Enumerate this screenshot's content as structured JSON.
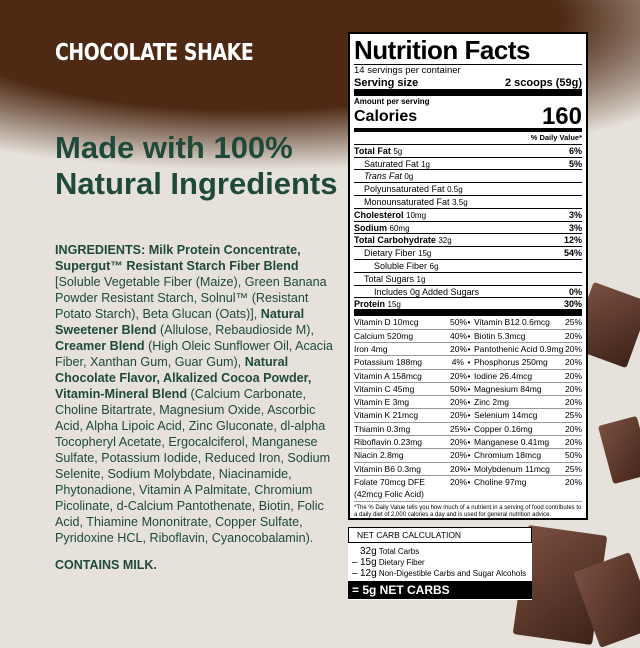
{
  "brand_color": "#4e2a14",
  "text_color": "#1f4a3a",
  "title": "CHOCOLATE SHAKE",
  "headline": "Made with 100% Natural Ingredients",
  "ingredients": [
    {
      "b": "INGREDIENTS: Milk Protein Concentrate, Supergut™ Resistant Starch Fiber Blend "
    },
    {
      "t": "[Soluble Vegetable Fiber (Maize), Green Banana Powder Resistant Starch, Solnul™ (Resistant Potato Starch), Beta Glucan (Oats)], "
    },
    {
      "b": "Natural Sweetener Blend "
    },
    {
      "t": "(Allulose, Rebaudioside M), "
    },
    {
      "b": "Creamer Blend "
    },
    {
      "t": "(High Oleic Sunflower Oil, Acacia Fiber, Xanthan Gum, Guar Gum), "
    },
    {
      "b": "Natural Chocolate Flavor, Alkalized Cocoa Powder, Vitamin-Mineral Blend "
    },
    {
      "t": "(Calcium Carbonate, Choline Bitartrate, Magnesium Oxide, Ascorbic Acid, Alpha Lipoic Acid, Zinc Gluconate, dl-alpha Tocopheryl Acetate, Ergocalciferol, Manganese Sulfate, Potassium Iodide, Reduced Iron, Sodium Selenite, Sodium Molybdate, Niacinamide, Phytonadione, Vitamin A Palmitate, Chromium Picolinate, d-Calcium Pantothenate, Biotin, Folic Acid, Thiamine Mononitrate, Copper Sulfate, Pyridoxine HCL, Riboflavin, Cyanocobalamin)."
    }
  ],
  "contains": "CONTAINS MILK.",
  "label": {
    "heading": "Nutrition Facts",
    "servings": "14 servings per container",
    "serving_size_label": "Serving size",
    "serving_size": "2 scoops (59g)",
    "amount_per": "Amount per serving",
    "calories_label": "Calories",
    "calories": "160",
    "dv_header": "% Daily Value*",
    "rows": [
      {
        "name": "Total Fat",
        "amt": "5g",
        "dv": "6%",
        "bold": true,
        "ind": 0
      },
      {
        "name": "Saturated Fat",
        "amt": "1g",
        "dv": "5%",
        "ind": 1
      },
      {
        "name": "Trans Fat",
        "amt": "0g",
        "dv": "",
        "ind": 1,
        "italic": true
      },
      {
        "name": "Polyunsaturated Fat",
        "amt": "0.5g",
        "dv": "",
        "ind": 1
      },
      {
        "name": "Monounsaturated Fat",
        "amt": "3.5g",
        "dv": "",
        "ind": 1
      },
      {
        "name": "Cholesterol",
        "amt": "10mg",
        "dv": "3%",
        "bold": true,
        "ind": 0
      },
      {
        "name": "Sodium",
        "amt": "60mg",
        "dv": "3%",
        "bold": true,
        "ind": 0
      },
      {
        "name": "Total Carbohydrate",
        "amt": "32g",
        "dv": "12%",
        "bold": true,
        "ind": 0
      },
      {
        "name": "Dietary Fiber",
        "amt": "15g",
        "dv": "54%",
        "ind": 1
      },
      {
        "name": "Soluble Fiber",
        "amt": "6g",
        "dv": "",
        "ind": 2
      },
      {
        "name": "Total Sugars",
        "amt": "1g",
        "dv": "",
        "ind": 1
      },
      {
        "name": "Includes 0g Added Sugars",
        "amt": "",
        "dv": "0%",
        "ind": 2
      },
      {
        "name": "Protein",
        "amt": "15g",
        "dv": "30%",
        "bold": true,
        "ind": 0,
        "thick": true
      }
    ],
    "vitamins": [
      [
        "Vitamin D 10mcg",
        "50%",
        "Vitamin B12 0.6mcg",
        "25%"
      ],
      [
        "Calcium 520mg",
        "40%",
        "Biotin 5.3mcg",
        "20%"
      ],
      [
        "Iron 4mg",
        "20%",
        "Pantothenic Acid 0.9mg",
        "20%"
      ],
      [
        "Potassium 188mg",
        "4%",
        "Phosphorus 250mg",
        "20%"
      ],
      [
        "Vitamin A 158mcg",
        "20%",
        "Iodine 26.4mcg",
        "20%"
      ],
      [
        "Vitamin C 45mg",
        "50%",
        "Magnesium 84mg",
        "20%"
      ],
      [
        "Vitamin E 3mg",
        "20%",
        "Zinc 2mg",
        "20%"
      ],
      [
        "Vitamin K 21mcg",
        "20%",
        "Selenium 14mcg",
        "25%"
      ],
      [
        "Thiamin 0.3mg",
        "25%",
        "Copper 0.16mg",
        "20%"
      ],
      [
        "Riboflavin 0.23mg",
        "20%",
        "Manganese 0.41mg",
        "20%"
      ],
      [
        "Niacin 2.8mg",
        "20%",
        "Chromium 18mcg",
        "50%"
      ],
      [
        "Vitamin B6 0.3mg",
        "20%",
        "Molybdenum 11mcg",
        "25%"
      ],
      [
        "Folate 70mcg DFE (42mcg Folic Acid)",
        "20%",
        "Choline 97mg",
        "20%"
      ]
    ],
    "footnote": "*The % Daily Value tells you how much of a nutrient in a serving of food contributes to a daily diet of 2,000 calories a day and is used for general nutrition advice."
  },
  "net_carbs": {
    "heading": "NET CARB CALCULATION",
    "lines": [
      [
        "",
        "32g",
        "Total Carbs"
      ],
      [
        "–",
        "15g",
        "Dietary Fiber"
      ],
      [
        "–",
        "12g",
        "Non-Digestible Carbs and Sugar Alcohols"
      ]
    ],
    "total": "= 5g NET CARBS"
  }
}
